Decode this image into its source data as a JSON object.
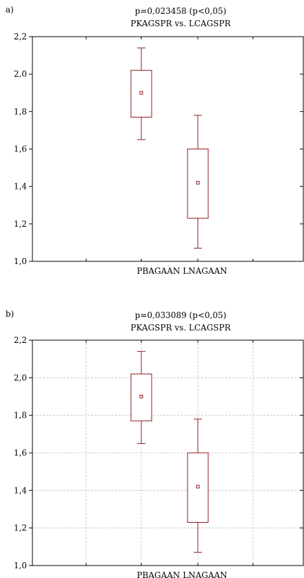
{
  "chart_data": [
    {
      "type": "box",
      "panel_label": "a)",
      "title_line1": "p=0,023458 (p<0,05)",
      "title_line2": "PKAGSPR  vs. LCAGSPR",
      "xlabel": "PBAGAAN  LNAGAAN",
      "ylim": [
        1.0,
        2.2
      ],
      "yticks": [
        "1,0",
        "1,2",
        "1,4",
        "1,6",
        "1,8",
        "2,0",
        "2,2"
      ],
      "ytick_values": [
        1.0,
        1.2,
        1.4,
        1.6,
        1.8,
        2.0,
        2.2
      ],
      "grid": false,
      "boxes": [
        {
          "median": 1.9,
          "q1": 1.77,
          "q3": 2.02,
          "min": 1.65,
          "max": 2.14
        },
        {
          "median": 1.42,
          "q1": 1.23,
          "q3": 1.6,
          "min": 1.07,
          "max": 1.78
        }
      ]
    },
    {
      "type": "box",
      "panel_label": "b)",
      "title_line1": "p=0,033089 (p<0,05)",
      "title_line2": "PKAGSPR  vs. LCAGSPR",
      "xlabel": "PBAGAAN  LNAGAAN",
      "ylim": [
        1.0,
        2.2
      ],
      "yticks": [
        "1,0",
        "1,2",
        "1,4",
        "1,6",
        "1,8",
        "2,0",
        "2,2"
      ],
      "ytick_values": [
        1.0,
        1.2,
        1.4,
        1.6,
        1.8,
        2.0,
        2.2
      ],
      "grid": true,
      "boxes": [
        {
          "median": 1.9,
          "q1": 1.77,
          "q3": 2.02,
          "min": 1.65,
          "max": 2.14
        },
        {
          "median": 1.42,
          "q1": 1.23,
          "q3": 1.6,
          "min": 1.07,
          "max": 1.78
        }
      ]
    }
  ],
  "colors": {
    "box": "#8b1a1a",
    "axis": "#000000",
    "grid": "#bfbfbf"
  }
}
